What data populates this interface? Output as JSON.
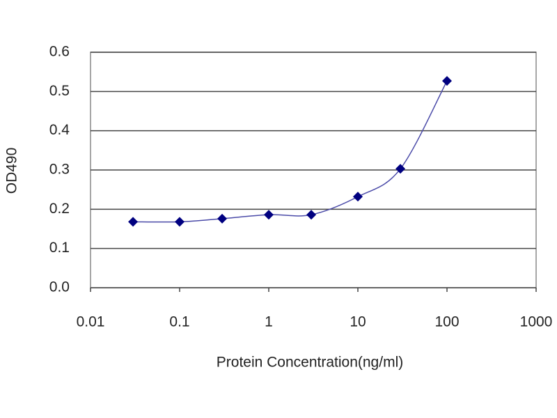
{
  "chart_data": {
    "type": "line",
    "x_label": "Protein Concentration(ng/ml)",
    "y_label": "OD490",
    "x": [
      0.03,
      0.1,
      0.3,
      1,
      3,
      10,
      30,
      100
    ],
    "series": [
      {
        "color": "#000080",
        "values": [
          0.168,
          0.168,
          0.176,
          0.186,
          0.186,
          0.232,
          0.303,
          0.527
        ]
      }
    ],
    "xscale": "log",
    "xlim": [
      0.01,
      1000
    ],
    "xticks": [
      0.01,
      0.1,
      1,
      10,
      100,
      1000
    ],
    "ylim": [
      0,
      0.6
    ],
    "yticks": [
      {
        "value": 0,
        "label": "0.0"
      },
      0.1,
      0.2,
      0.3,
      0.4,
      0.5,
      0.6
    ],
    "grid": true,
    "line_color": "#4a4aa8",
    "smooth": true
  }
}
